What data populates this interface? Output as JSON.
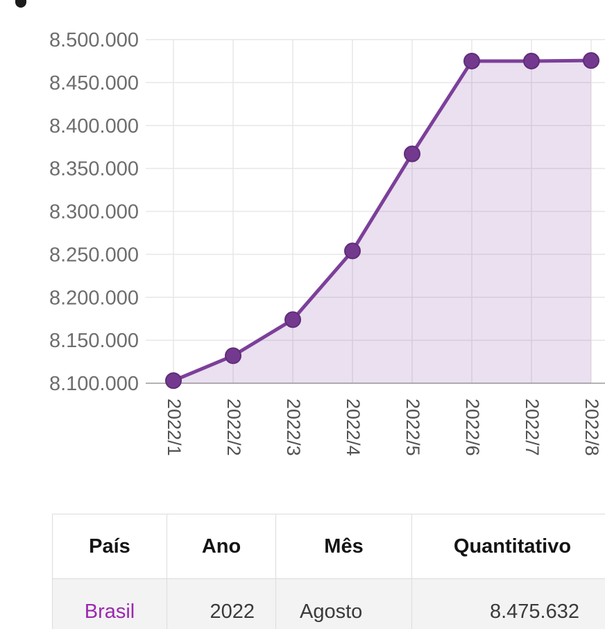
{
  "chart_data": {
    "type": "area",
    "title": "",
    "xlabel": "",
    "ylabel": "",
    "x": [
      "2022/1",
      "2022/2",
      "2022/3",
      "2022/4",
      "2022/5",
      "2022/6",
      "2022/7",
      "2022/8"
    ],
    "series": [
      {
        "name": "Quantitativo",
        "values": [
          8103000,
          8132000,
          8174000,
          8254000,
          8367000,
          8475000,
          8475000,
          8475632
        ]
      }
    ],
    "ylim": [
      8100000,
      8500000
    ],
    "ytick_values": [
      8100000,
      8150000,
      8200000,
      8250000,
      8300000,
      8350000,
      8400000,
      8450000,
      8500000
    ],
    "ytick_labels": [
      "8.100.000",
      "8.150.000",
      "8.200.000",
      "8.250.000",
      "8.300.000",
      "8.350.000",
      "8.400.000",
      "8.450.000",
      "8.500.000"
    ],
    "xlabel_rotation": 90,
    "grid": true,
    "legend": "none",
    "colors": {
      "line": "#7c3f9a",
      "point": "#73398f",
      "point_border": "#5f2d77",
      "fill": "rgba(124,63,154,0.16)",
      "grid": "#e7e7e7",
      "axis": "#b3b3b3"
    }
  },
  "table": {
    "headers": [
      "País",
      "Ano",
      "Mês",
      "Quantitativo"
    ],
    "rows": [
      {
        "pais": "Brasil",
        "ano": "2022",
        "mes": "Agosto",
        "quantitativo": "8.475.632"
      }
    ],
    "link_color": "#9c27b0"
  }
}
